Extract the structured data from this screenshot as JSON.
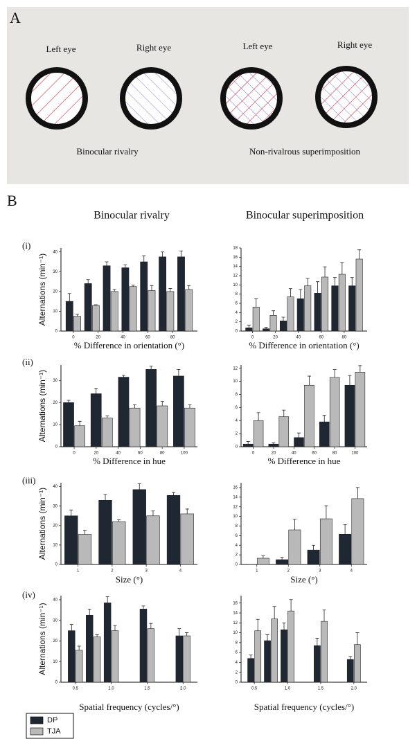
{
  "panel_a": {
    "label": "A",
    "eye_labels": [
      "Left eye",
      "Right eye",
      "Left eye",
      "Right eye"
    ],
    "captions": [
      "Binocular rivalry",
      "Non-rivalrous superimposition"
    ]
  },
  "panel_b": {
    "label": "B",
    "column_titles": [
      "Binocular rivalry",
      "Binocular superimposition"
    ],
    "row_labels": [
      "(i)",
      "(ii)",
      "(iii)",
      "(iv)"
    ]
  },
  "chart_data": [
    {
      "type": "bar",
      "y_label": "Alternations (min⁻¹)",
      "x_label": "% Difference in orientation (°)",
      "x": [
        0,
        15,
        30,
        45,
        60,
        75,
        90
      ],
      "xlim": [
        -10,
        100
      ],
      "xticks": [
        0,
        20,
        40,
        60,
        80
      ],
      "ylim": [
        0,
        42
      ],
      "yticks": [
        0,
        10,
        20,
        30,
        40
      ],
      "series": [
        {
          "name": "DP",
          "color": "#1f2733",
          "values": [
            15,
            24,
            33,
            32,
            35,
            37.5,
            37.5
          ],
          "errors": [
            4,
            2,
            2,
            1.5,
            3,
            2.5,
            3
          ]
        },
        {
          "name": "TJA",
          "color": "#b9b9b9",
          "values": [
            7.5,
            13,
            20,
            22.5,
            20.5,
            20,
            21
          ],
          "errors": [
            1,
            0.3,
            1,
            0.7,
            2.5,
            1.5,
            2
          ]
        }
      ]
    },
    {
      "type": "bar",
      "x_label": "% Difference in orientation (°)",
      "x": [
        0,
        15,
        30,
        45,
        60,
        75,
        90
      ],
      "xlim": [
        -10,
        100
      ],
      "xticks": [
        0,
        20,
        40,
        60,
        80
      ],
      "ylim": [
        0,
        18
      ],
      "yticks": [
        0,
        2,
        4,
        6,
        8,
        10,
        12,
        14,
        16,
        18
      ],
      "series": [
        {
          "name": "DP",
          "color": "#1f2733",
          "values": [
            0.7,
            0.5,
            2.2,
            7,
            8.2,
            9.8,
            9.8
          ],
          "errors": [
            0.6,
            0.3,
            0.8,
            2,
            2.5,
            1.8,
            1.8
          ]
        },
        {
          "name": "TJA",
          "color": "#b9b9b9",
          "values": [
            5.2,
            3.4,
            7.4,
            9.8,
            11.7,
            12.3,
            15.6
          ],
          "errors": [
            1.8,
            1,
            1.8,
            1.6,
            2.2,
            2.5,
            2
          ]
        }
      ]
    },
    {
      "type": "bar",
      "y_label": "Alternations (min⁻¹)",
      "x_label": "% Difference in hue",
      "x": [
        0,
        25,
        50,
        75,
        100
      ],
      "xlim": [
        -12,
        112
      ],
      "xticks": [
        0,
        20,
        40,
        60,
        80,
        100
      ],
      "ylim": [
        0,
        37
      ],
      "yticks": [
        0,
        10,
        20,
        30
      ],
      "series": [
        {
          "name": "DP",
          "color": "#1f2733",
          "values": [
            20,
            24,
            31.5,
            35,
            32
          ],
          "errors": [
            1,
            2.5,
            0.8,
            1.5,
            3
          ]
        },
        {
          "name": "TJA",
          "color": "#b9b9b9",
          "values": [
            9.5,
            13,
            17.5,
            18.5,
            17.5
          ],
          "errors": [
            2,
            1,
            1.5,
            2,
            1.5
          ]
        }
      ]
    },
    {
      "type": "bar",
      "x_label": "% Difference in hue",
      "x": [
        0,
        25,
        50,
        75,
        100
      ],
      "xlim": [
        -12,
        112
      ],
      "xticks": [
        0,
        20,
        40,
        60,
        80,
        100
      ],
      "ylim": [
        0,
        12.5
      ],
      "yticks": [
        0,
        2,
        4,
        6,
        8,
        10,
        12
      ],
      "series": [
        {
          "name": "DP",
          "color": "#1f2733",
          "values": [
            0.4,
            0.4,
            1.4,
            3.8,
            9.4
          ],
          "errors": [
            0.4,
            0.2,
            0.7,
            1,
            1.5
          ]
        },
        {
          "name": "TJA",
          "color": "#b9b9b9",
          "values": [
            4,
            4.6,
            9.4,
            10.6,
            11.4
          ],
          "errors": [
            1.2,
            1,
            1.4,
            1.2,
            1
          ]
        }
      ]
    },
    {
      "type": "bar",
      "y_label": "Alternations (min⁻¹)",
      "x_label": "Size (°)",
      "x": [
        1,
        2,
        3,
        4
      ],
      "xlim": [
        0.5,
        4.5
      ],
      "xticks": [
        1,
        2,
        3,
        4
      ],
      "ylim": [
        0,
        42
      ],
      "yticks": [
        0,
        10,
        20,
        30,
        40
      ],
      "series": [
        {
          "name": "DP",
          "color": "#1f2733",
          "values": [
            25,
            33,
            38.5,
            35.5
          ],
          "errors": [
            3,
            3,
            3,
            1.5
          ]
        },
        {
          "name": "TJA",
          "color": "#b9b9b9",
          "values": [
            15.5,
            22,
            25,
            26
          ],
          "errors": [
            2,
            1,
            2.5,
            2.5
          ]
        }
      ]
    },
    {
      "type": "bar",
      "x_label": "Size (°)",
      "x": [
        1,
        2,
        3,
        4
      ],
      "xlim": [
        0.5,
        4.5
      ],
      "xticks": [
        1,
        2,
        3,
        4
      ],
      "ylim": [
        0,
        17
      ],
      "yticks": [
        0,
        2,
        4,
        6,
        8,
        10,
        12,
        14,
        16
      ],
      "series": [
        {
          "name": "DP",
          "color": "#1f2733",
          "values": [
            0,
            1,
            3,
            6.3
          ],
          "errors": [
            0,
            0.5,
            1,
            2
          ]
        },
        {
          "name": "TJA",
          "color": "#b9b9b9",
          "values": [
            1.3,
            7.2,
            9.5,
            13.7
          ],
          "errors": [
            0.5,
            2.2,
            2.7,
            2.3
          ]
        }
      ]
    },
    {
      "type": "bar",
      "y_label": "Alternations (min⁻¹)",
      "x_label": "Spatial frequency (cycles/°)",
      "x": [
        0.5,
        0.75,
        1,
        1.5,
        2
      ],
      "xlim": [
        0.3,
        2.2
      ],
      "xticks": [
        0.5,
        {
          "value": 1,
          "label": "1.0"
        },
        1.5,
        {
          "value": 2,
          "label": "2.0"
        }
      ],
      "ylim": [
        0,
        42
      ],
      "yticks": [
        0,
        10,
        20,
        30,
        40
      ],
      "series": [
        {
          "name": "DP",
          "color": "#1f2733",
          "values": [
            25,
            32.5,
            38.5,
            35.5,
            22.5
          ],
          "errors": [
            3,
            3,
            3,
            1.5,
            3.5
          ]
        },
        {
          "name": "TJA",
          "color": "#b9b9b9",
          "values": [
            15.5,
            22,
            25,
            26,
            22.5
          ],
          "errors": [
            2,
            1,
            2.5,
            2.5,
            1.5
          ]
        }
      ]
    },
    {
      "type": "bar",
      "x_label": "Spatial frequency (cycles/°)",
      "x": [
        0.5,
        0.75,
        1,
        1.5,
        2
      ],
      "xlim": [
        0.3,
        2.2
      ],
      "xticks": [
        0.5,
        {
          "value": 1,
          "label": "1.0"
        },
        1.5,
        {
          "value": 2,
          "label": "2.0"
        }
      ],
      "ylim": [
        0,
        17.5
      ],
      "yticks": [
        0,
        2,
        4,
        6,
        8,
        10,
        12,
        14,
        16
      ],
      "series": [
        {
          "name": "DP",
          "color": "#1f2733",
          "values": [
            4.8,
            8.4,
            10.6,
            7.4,
            4.6
          ],
          "errors": [
            0.7,
            1.2,
            1.4,
            1.5,
            0.6
          ]
        },
        {
          "name": "TJA",
          "color": "#b9b9b9",
          "values": [
            10.4,
            12.8,
            14.4,
            12.3,
            7.6
          ],
          "errors": [
            2.3,
            2.5,
            2.3,
            2.3,
            2.4
          ]
        }
      ]
    }
  ]
}
